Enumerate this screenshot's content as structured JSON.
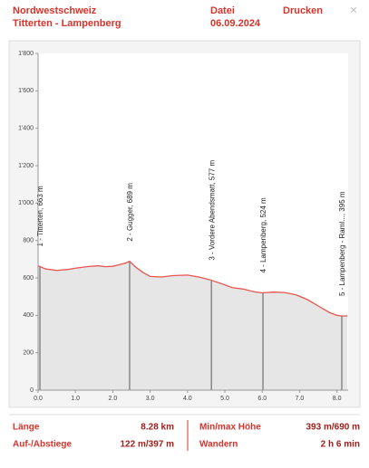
{
  "header": {
    "region": "Nordwestschweiz",
    "route": "Titterten - Lampenberg",
    "menu_file": "Datei",
    "menu_print": "Drucken",
    "date": "06.09.2024",
    "close": "×"
  },
  "chart_data": {
    "type": "area",
    "color": "#e8554e",
    "fill": "#e6e6e6",
    "x": [
      0,
      0.2,
      0.5,
      0.8,
      1.0,
      1.3,
      1.6,
      1.8,
      2.0,
      2.2,
      2.35,
      2.45,
      2.6,
      2.8,
      3.0,
      3.3,
      3.6,
      4.0,
      4.3,
      4.6,
      4.9,
      5.2,
      5.5,
      5.8,
      6.0,
      6.3,
      6.6,
      6.9,
      7.2,
      7.5,
      7.8,
      8.0,
      8.15,
      8.28
    ],
    "values": [
      665,
      648,
      640,
      645,
      652,
      660,
      665,
      660,
      662,
      672,
      680,
      689,
      660,
      630,
      608,
      605,
      612,
      615,
      605,
      590,
      570,
      548,
      540,
      525,
      520,
      524,
      522,
      510,
      485,
      450,
      415,
      400,
      396,
      397
    ],
    "xlim": [
      0,
      8.3
    ],
    "ylim": [
      0,
      1800
    ],
    "xticks": [
      {
        "value": 0,
        "label": "0.0"
      },
      {
        "value": 1,
        "label": "1.0"
      },
      {
        "value": 2,
        "label": "2.0"
      },
      {
        "value": 3,
        "label": "3.0"
      },
      {
        "value": 4,
        "label": "4.0"
      },
      {
        "value": 5,
        "label": "5.0"
      },
      {
        "value": 6,
        "label": "6.0"
      },
      {
        "value": 7,
        "label": "7.0"
      },
      {
        "value": 8,
        "label": "8.0"
      }
    ],
    "yticks": [
      0,
      200,
      400,
      600,
      800,
      {
        "value": 1000,
        "label": "1'000"
      },
      {
        "value": 1200,
        "label": "1'200"
      },
      {
        "value": 1400,
        "label": "1'400"
      },
      {
        "value": 1600,
        "label": "1'600"
      },
      {
        "value": 1800,
        "label": "1'800"
      }
    ],
    "waypoints": [
      {
        "label": "1 - Titterten, 663 m",
        "x": 0.05
      },
      {
        "label": "2 - Gugger, 689 m",
        "x": 2.45
      },
      {
        "label": "3 - Vordere Abendsmatt, 577 m",
        "x": 4.64
      },
      {
        "label": "4 - Lampenberg, 524 m",
        "x": 6.02
      },
      {
        "label": "5 - Lampenberg - Raml..., 395 m",
        "x": 8.13
      }
    ]
  },
  "stats": [
    {
      "label": "Länge",
      "value": "8.28 km"
    },
    {
      "label": "Min/max Höhe",
      "value": "393 m/690 m"
    },
    {
      "label": "Auf-/Abstiege",
      "value": "122 m/397 m"
    },
    {
      "label": "Wandern",
      "value": "2 h 6 min"
    }
  ]
}
